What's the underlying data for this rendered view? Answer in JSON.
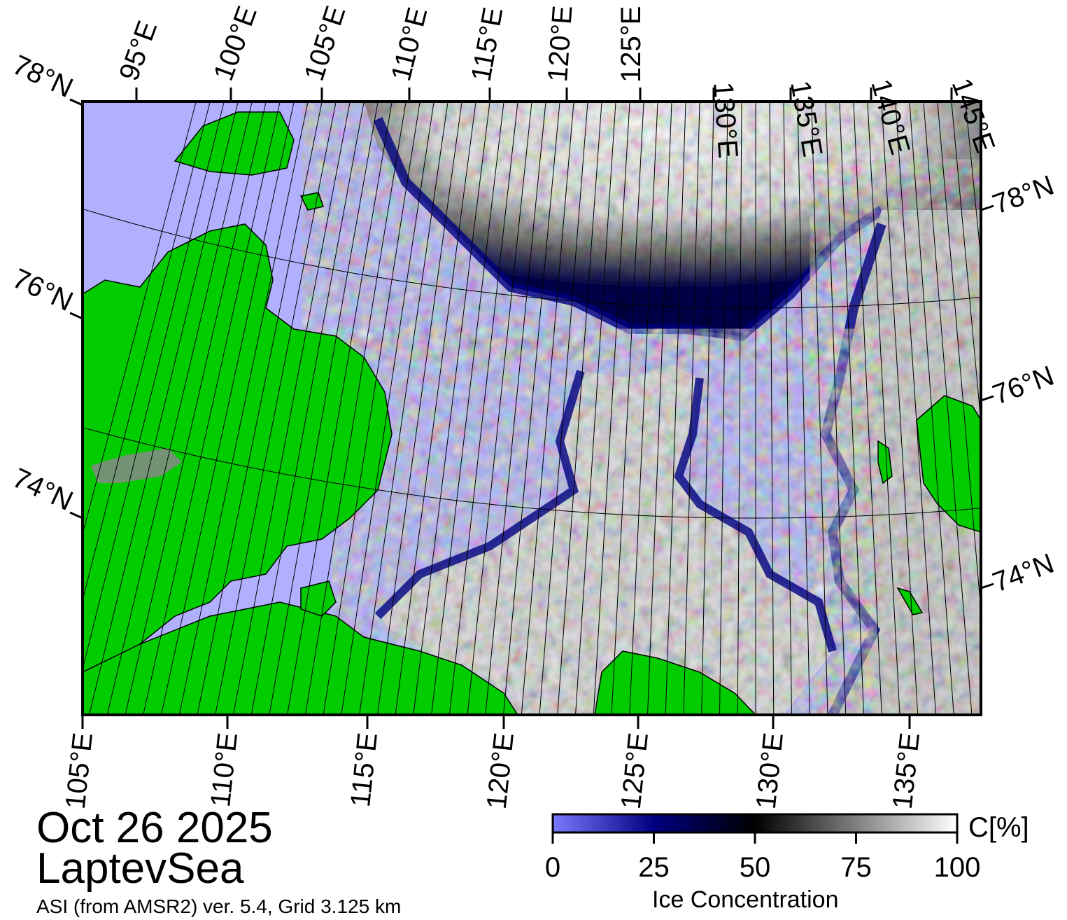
{
  "map": {
    "date": "Oct 26 2025",
    "region": "LaptevSea",
    "product": "ASI (from AMSR2) ver. 5.4,  Grid 3.125 km",
    "colors": {
      "land": "#00cc00",
      "open_water": "#b0b0ff",
      "coast_mask": "#888888",
      "frame": "#000000"
    },
    "lon_labels_top": [
      "95°E",
      "100°E",
      "105°E",
      "110°E",
      "115°E",
      "120°E",
      "125°E",
      "130°E",
      "135°E",
      "140°E",
      "145°E"
    ],
    "lon_labels_bottom": [
      "105°E",
      "110°E",
      "115°E",
      "120°E",
      "125°E",
      "130°E",
      "135°E"
    ],
    "lat_labels_left": [
      "78°N",
      "76°N",
      "74°N"
    ],
    "lat_labels_right": [
      "78°N",
      "76°N",
      "74°N"
    ]
  },
  "colorbar": {
    "title": "Ice Concentration",
    "unit": "C[%]",
    "ticks": [
      "0",
      "25",
      "50",
      "75",
      "100"
    ],
    "color_stops": [
      {
        "value": 0,
        "color": "#7a7aff"
      },
      {
        "value": 25,
        "color": "#000080"
      },
      {
        "value": 50,
        "color": "#000000"
      },
      {
        "value": 100,
        "color": "#ffffff"
      }
    ]
  }
}
